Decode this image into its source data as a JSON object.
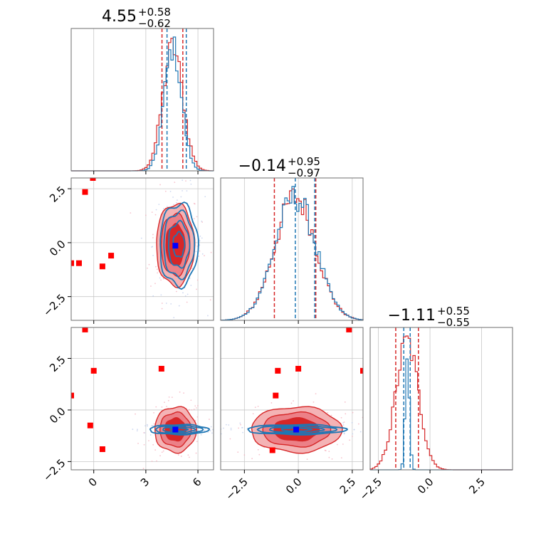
{
  "chart_data": {
    "type": "corner",
    "parameters": 3,
    "titles": [
      {
        "value": "4.55",
        "plus": "+0.58",
        "minus": "−0.62"
      },
      {
        "value": "−0.14",
        "plus": "+0.95",
        "minus": "−0.97"
      },
      {
        "value": "−1.11",
        "plus": "+0.55",
        "minus": "−0.55"
      }
    ],
    "axes": {
      "p0": {
        "range": [
          -1.3,
          6.9
        ],
        "ticks": [
          0,
          3,
          6
        ],
        "tick_labels": [
          "0",
          "3",
          "6"
        ]
      },
      "p1": {
        "range": [
          -3.6,
          3.0
        ],
        "ticks": [
          -2.5,
          0.0,
          2.5
        ],
        "tick_labels": [
          "−2.5",
          "0.0",
          "2.5"
        ]
      },
      "p2": {
        "range": [
          -2.9,
          4.0
        ],
        "ticks": [
          -2.5,
          0.0,
          2.5
        ],
        "tick_labels": [
          "−2.5",
          "0.0",
          "2.5"
        ]
      }
    },
    "grid": true,
    "series": [
      {
        "color": "#d62728",
        "histogram_shape": [
          {
            "center": 4.55,
            "sigma": 0.58
          },
          {
            "center": -0.14,
            "sigma": 0.95
          },
          {
            "center": -1.11,
            "sigma": 0.55
          }
        ],
        "quantile_lines": [
          [
            3.93,
            5.13
          ],
          [
            -1.11,
            0.81
          ],
          [
            -1.66,
            -0.56
          ]
        ],
        "centers": {
          "p0p1": [
            4.7,
            -0.1
          ],
          "p0p2": [
            4.7,
            -0.95
          ],
          "p1p2": [
            -0.1,
            -0.95
          ]
        },
        "sigmas": {
          "p0p1": [
            0.55,
            0.95
          ],
          "p0p2": [
            0.6,
            0.55
          ],
          "p1p2": [
            1.05,
            0.55
          ]
        },
        "filled_contours": true,
        "outlier_points": {
          "p0p1": [
            [
              -0.5,
              2.35
            ],
            [
              -0.05,
              3.0
            ],
            [
              -0.85,
              -0.95
            ],
            [
              0.5,
              -1.1
            ],
            [
              1.0,
              -0.6
            ],
            [
              -1.3,
              -0.95
            ]
          ],
          "p0p2": [
            [
              -0.5,
              3.9
            ],
            [
              0.0,
              1.9
            ],
            [
              3.9,
              2.0
            ],
            [
              -0.2,
              -0.75
            ],
            [
              0.5,
              -1.9
            ],
            [
              -1.3,
              0.7
            ]
          ],
          "p1p2": [
            [
              -0.95,
              1.9
            ],
            [
              0.0,
              2.0
            ],
            [
              2.35,
              3.9
            ],
            [
              -1.05,
              0.7
            ],
            [
              -1.2,
              -1.95
            ],
            [
              3.0,
              1.9
            ]
          ]
        }
      },
      {
        "color": "#1f77b4",
        "histogram_shape": [
          {
            "center": 4.55,
            "sigma": 0.5
          },
          {
            "center": -0.14,
            "sigma": 0.95
          },
          {
            "center": -1.1,
            "sigma": 0.1
          }
        ],
        "quantile_lines": [
          [
            4.22,
            5.33
          ],
          [
            -0.14,
            0.76
          ],
          [
            -1.27,
            -0.96
          ]
        ],
        "centers": {
          "p0p1": [
            4.9,
            -0.1
          ],
          "p0p2": [
            4.9,
            -0.95
          ],
          "p1p2": [
            -0.1,
            -0.95
          ]
        },
        "sigmas": {
          "p0p1": [
            0.55,
            0.95
          ],
          "p0p2": [
            0.85,
            0.12
          ],
          "p1p2": [
            1.15,
            0.12
          ]
        },
        "filled_contours": false
      }
    ],
    "truth_markers": {
      "color": "#0000ff",
      "p0p1": [
        4.7,
        -0.14
      ],
      "p0p2": [
        4.7,
        -0.95
      ],
      "p1p2": [
        -0.1,
        -0.95
      ]
    }
  }
}
